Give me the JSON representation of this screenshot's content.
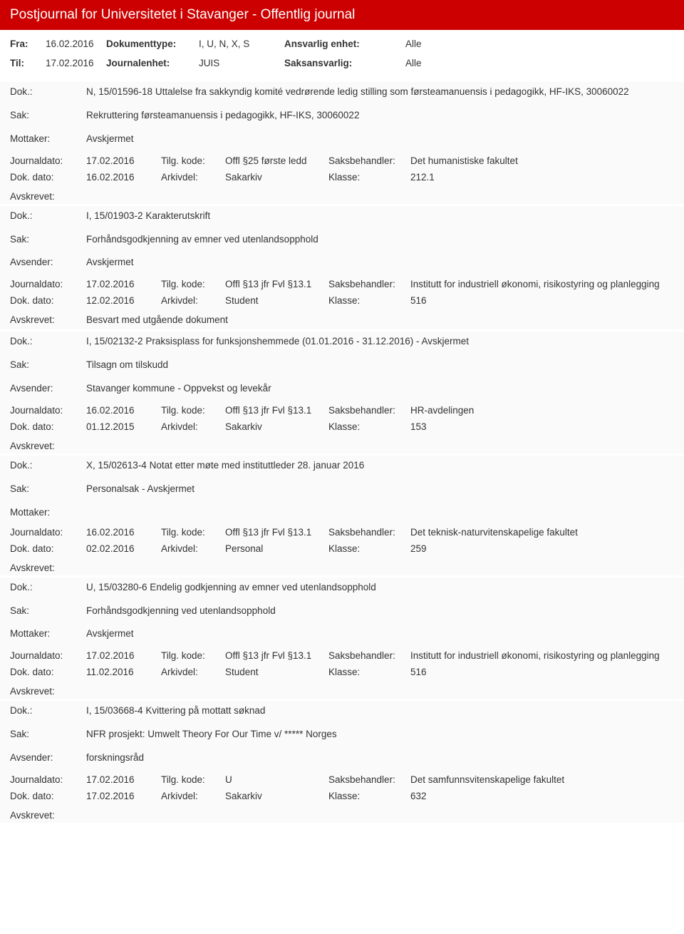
{
  "header": {
    "title": "Postjournal for Universitetet i Stavanger - Offentlig journal"
  },
  "meta": {
    "fra_label": "Fra:",
    "fra_value": "16.02.2016",
    "doctype_label": "Dokumenttype:",
    "doctype_value": "I, U, N, X, S",
    "ansvarlig_label": "Ansvarlig enhet:",
    "ansvarlig_value": "Alle",
    "til_label": "Til:",
    "til_value": "17.02.2016",
    "journalenhet_label": "Journalenhet:",
    "journalenhet_value": "JUIS",
    "saksansvarlig_label": "Saksansvarlig:",
    "saksansvarlig_value": "Alle"
  },
  "labels": {
    "dok": "Dok.:",
    "sak": "Sak:",
    "mottaker": "Mottaker:",
    "avsender": "Avsender:",
    "journaldato": "Journaldato:",
    "tilgkode": "Tilg. kode:",
    "saksbehandler": "Saksbehandler:",
    "dokdato": "Dok. dato:",
    "arkivdel": "Arkivdel:",
    "klasse": "Klasse:",
    "avskrevet": "Avskrevet:"
  },
  "entries": [
    {
      "dok": "N, 15/01596-18 Uttalelse fra sakkyndig komité vedrørende ledig stilling som førsteamanuensis i pedagogikk, HF-IKS, 30060022",
      "sak": "Rekruttering førsteamanuensis i pedagogikk, HF-IKS, 30060022",
      "party_label": "Mottaker:",
      "party_value": "Avskjermet",
      "journaldato": "17.02.2016",
      "tilgkode": "Offl §25 første ledd",
      "saksbehandler": "Det humanistiske fakultet",
      "dokdato": "16.02.2016",
      "arkivdel": "Sakarkiv",
      "klasse": "212.1",
      "avskrevet": ""
    },
    {
      "dok": "I, 15/01903-2 Karakterutskrift",
      "sak": "Forhåndsgodkjenning av emner ved utenlandsopphold",
      "party_label": "Avsender:",
      "party_value": "Avskjermet",
      "journaldato": "17.02.2016",
      "tilgkode": "Offl §13 jfr Fvl §13.1",
      "saksbehandler": "Institutt for industriell økonomi, risikostyring og planlegging",
      "dokdato": "12.02.2016",
      "arkivdel": "Student",
      "klasse": "516",
      "avskrevet": "Besvart med utgående dokument"
    },
    {
      "dok": "I, 15/02132-2 Praksisplass for funksjonshemmede (01.01.2016 - 31.12.2016) - Avskjermet",
      "sak": "Tilsagn om tilskudd",
      "party_label": "Avsender:",
      "party_value": "Stavanger kommune - Oppvekst og levekår",
      "journaldato": "16.02.2016",
      "tilgkode": "Offl §13 jfr Fvl §13.1",
      "saksbehandler": "HR-avdelingen",
      "dokdato": "01.12.2015",
      "arkivdel": "Sakarkiv",
      "klasse": "153",
      "avskrevet": ""
    },
    {
      "dok": "X, 15/02613-4 Notat etter møte med instituttleder 28. januar 2016",
      "sak": "Personalsak - Avskjermet",
      "party_label": "Mottaker:",
      "party_value": "",
      "journaldato": "16.02.2016",
      "tilgkode": "Offl §13 jfr Fvl §13.1",
      "saksbehandler": "Det teknisk-naturvitenskapelige fakultet",
      "dokdato": "02.02.2016",
      "arkivdel": "Personal",
      "klasse": "259",
      "avskrevet": ""
    },
    {
      "dok": "U, 15/03280-6 Endelig godkjenning av emner ved utenlandsopphold",
      "sak": "Forhåndsgodkjenning ved utenlandsopphold",
      "party_label": "Mottaker:",
      "party_value": "Avskjermet",
      "journaldato": "17.02.2016",
      "tilgkode": "Offl §13 jfr Fvl §13.1",
      "saksbehandler": "Institutt for industriell økonomi, risikostyring og planlegging",
      "dokdato": "11.02.2016",
      "arkivdel": "Student",
      "klasse": "516",
      "avskrevet": ""
    },
    {
      "dok": "I, 15/03668-4 Kvittering på mottatt søknad",
      "sak": "NFR prosjekt: Umwelt Theory For Our Time v/ ***** Norges",
      "party_label": "Avsender:",
      "party_value": "forskningsråd",
      "journaldato": "17.02.2016",
      "tilgkode": "U",
      "saksbehandler": "Det samfunnsvitenskapelige fakultet",
      "dokdato": "17.02.2016",
      "arkivdel": "Sakarkiv",
      "klasse": "632",
      "avskrevet": ""
    }
  ]
}
